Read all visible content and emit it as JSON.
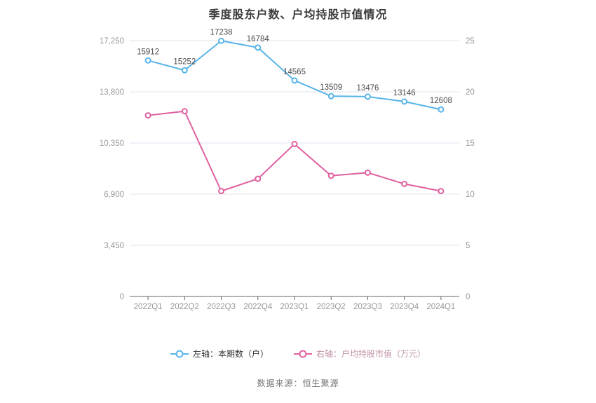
{
  "chart_data": {
    "type": "line",
    "title": "季度股东户数、户均持股市值情况",
    "categories": [
      "2022Q1",
      "2022Q2",
      "2022Q3",
      "2022Q4",
      "2023Q1",
      "2023Q2",
      "2023Q3",
      "2023Q4",
      "2024Q1"
    ],
    "series": [
      {
        "name": "左轴：本期数（户）",
        "y_axis": "left",
        "color": "#58b4e9",
        "values": [
          15912,
          15252,
          17238,
          16784,
          14565,
          13509,
          13476,
          13146,
          12608
        ],
        "data_labels": true
      },
      {
        "name": "右轴：户均持股市值（万元）",
        "y_axis": "right",
        "color": "#e0609f",
        "values": [
          17.7,
          18.1,
          10.3,
          11.5,
          14.9,
          11.8,
          12.1,
          11.0,
          10.3
        ],
        "data_labels": false
      }
    ],
    "left_axis": {
      "min": 0,
      "max": 17250,
      "tick_labels": [
        "0",
        "3,450",
        "6,900",
        "10,350",
        "13,800",
        "17,250"
      ]
    },
    "right_axis": {
      "min": 0,
      "max": 25,
      "tick_labels": [
        "0",
        "5",
        "10",
        "15",
        "20",
        "25"
      ]
    },
    "grid": true,
    "legend_position": "bottom",
    "colors": {
      "grid_line": "#e0e6f1",
      "axis_line": "#666666",
      "tick_label": "#999999",
      "data_label": "#4d4d4d",
      "title": "#3b3b3b",
      "legend_left_text": "#333333",
      "legend_right_text": "#c192a8",
      "footer_text": "#757575",
      "marker_fill": "#ffffff"
    }
  },
  "footer": {
    "source": "数据来源：恒生聚源"
  }
}
